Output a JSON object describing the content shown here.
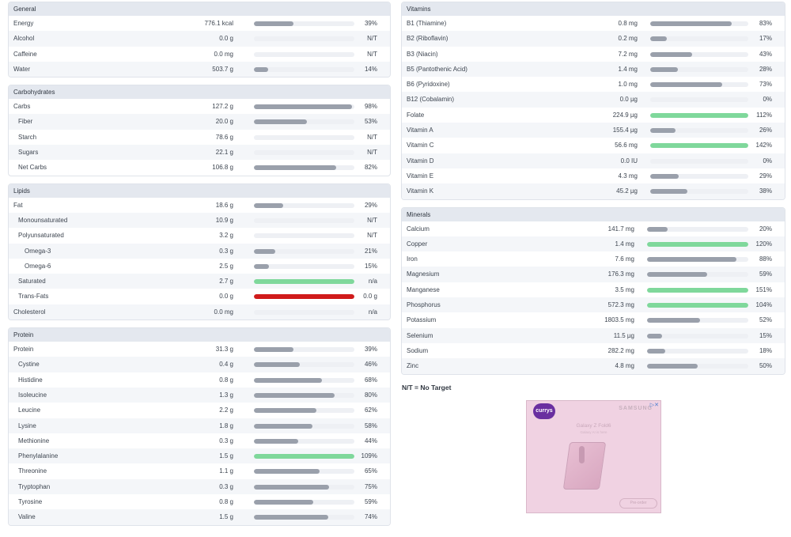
{
  "colors": {
    "grey_fill": "#9aa0ab",
    "green_fill": "#7fd89b",
    "red_fill": "#d01b1b",
    "track": "#eef0f4",
    "header_bg": "#e4e8ef"
  },
  "sections_left": [
    {
      "key": "general",
      "title": "General",
      "rows": [
        {
          "name": "Energy",
          "indent": 0,
          "amount": "776.1 kcal",
          "pct": "39%",
          "level": 0.39,
          "color": "grey"
        },
        {
          "name": "Alcohol",
          "indent": 0,
          "amount": "0.0 g",
          "pct": "N/T",
          "level": 0,
          "color": "grey"
        },
        {
          "name": "Caffeine",
          "indent": 0,
          "amount": "0.0 mg",
          "pct": "N/T",
          "level": 0,
          "color": "grey"
        },
        {
          "name": "Water",
          "indent": 0,
          "amount": "503.7 g",
          "pct": "14%",
          "level": 0.14,
          "color": "grey"
        }
      ]
    },
    {
      "key": "carbohydrates",
      "title": "Carbohydrates",
      "rows": [
        {
          "name": "Carbs",
          "indent": 0,
          "amount": "127.2 g",
          "pct": "98%",
          "level": 0.98,
          "color": "grey"
        },
        {
          "name": "Fiber",
          "indent": 1,
          "amount": "20.0 g",
          "pct": "53%",
          "level": 0.53,
          "color": "grey"
        },
        {
          "name": "Starch",
          "indent": 1,
          "amount": "78.6 g",
          "pct": "N/T",
          "level": 0,
          "color": "grey"
        },
        {
          "name": "Sugars",
          "indent": 1,
          "amount": "22.1 g",
          "pct": "N/T",
          "level": 0,
          "color": "grey"
        },
        {
          "name": "Net Carbs",
          "indent": 1,
          "amount": "106.8 g",
          "pct": "82%",
          "level": 0.82,
          "color": "grey"
        }
      ]
    },
    {
      "key": "lipids",
      "title": "Lipids",
      "rows": [
        {
          "name": "Fat",
          "indent": 0,
          "amount": "18.6 g",
          "pct": "29%",
          "level": 0.29,
          "color": "grey"
        },
        {
          "name": "Monounsaturated",
          "indent": 1,
          "amount": "10.9 g",
          "pct": "N/T",
          "level": 0,
          "color": "grey"
        },
        {
          "name": "Polyunsaturated",
          "indent": 1,
          "amount": "3.2 g",
          "pct": "N/T",
          "level": 0,
          "color": "grey"
        },
        {
          "name": "Omega-3",
          "indent": 2,
          "amount": "0.3 g",
          "pct": "21%",
          "level": 0.21,
          "color": "grey"
        },
        {
          "name": "Omega-6",
          "indent": 2,
          "amount": "2.5 g",
          "pct": "15%",
          "level": 0.15,
          "color": "grey"
        },
        {
          "name": "Saturated",
          "indent": 1,
          "amount": "2.7 g",
          "pct": "n/a",
          "level": 1,
          "color": "green"
        },
        {
          "name": "Trans-Fats",
          "indent": 1,
          "amount": "0.0 g",
          "pct": "0.0 g",
          "level": 1,
          "color": "red"
        },
        {
          "name": "Cholesterol",
          "indent": 0,
          "amount": "0.0 mg",
          "pct": "n/a",
          "level": 0,
          "color": "grey"
        }
      ]
    },
    {
      "key": "protein",
      "title": "Protein",
      "rows": [
        {
          "name": "Protein",
          "indent": 0,
          "amount": "31.3 g",
          "pct": "39%",
          "level": 0.39,
          "color": "grey"
        },
        {
          "name": "Cystine",
          "indent": 1,
          "amount": "0.4 g",
          "pct": "46%",
          "level": 0.46,
          "color": "grey"
        },
        {
          "name": "Histidine",
          "indent": 1,
          "amount": "0.8 g",
          "pct": "68%",
          "level": 0.68,
          "color": "grey"
        },
        {
          "name": "Isoleucine",
          "indent": 1,
          "amount": "1.3 g",
          "pct": "80%",
          "level": 0.8,
          "color": "grey"
        },
        {
          "name": "Leucine",
          "indent": 1,
          "amount": "2.2 g",
          "pct": "62%",
          "level": 0.62,
          "color": "grey"
        },
        {
          "name": "Lysine",
          "indent": 1,
          "amount": "1.8 g",
          "pct": "58%",
          "level": 0.58,
          "color": "grey"
        },
        {
          "name": "Methionine",
          "indent": 1,
          "amount": "0.3 g",
          "pct": "44%",
          "level": 0.44,
          "color": "grey"
        },
        {
          "name": "Phenylalanine",
          "indent": 1,
          "amount": "1.5 g",
          "pct": "109%",
          "level": 1,
          "color": "green"
        },
        {
          "name": "Threonine",
          "indent": 1,
          "amount": "1.1 g",
          "pct": "65%",
          "level": 0.65,
          "color": "grey"
        },
        {
          "name": "Tryptophan",
          "indent": 1,
          "amount": "0.3 g",
          "pct": "75%",
          "level": 0.75,
          "color": "grey"
        },
        {
          "name": "Tyrosine",
          "indent": 1,
          "amount": "0.8 g",
          "pct": "59%",
          "level": 0.59,
          "color": "grey"
        },
        {
          "name": "Valine",
          "indent": 1,
          "amount": "1.5 g",
          "pct": "74%",
          "level": 0.74,
          "color": "grey"
        }
      ]
    }
  ],
  "vitamins": {
    "title": "Vitamins",
    "rows": [
      {
        "name": "B1 (Thiamine)",
        "indent": 0,
        "amount": "0.8 mg",
        "pct": "83%",
        "level": 0.83,
        "color": "grey"
      },
      {
        "name": "B2 (Riboflavin)",
        "indent": 0,
        "amount": "0.2 mg",
        "pct": "17%",
        "level": 0.17,
        "color": "grey"
      },
      {
        "name": "B3 (Niacin)",
        "indent": 0,
        "amount": "7.2 mg",
        "pct": "43%",
        "level": 0.43,
        "color": "grey"
      },
      {
        "name": "B5 (Pantothenic Acid)",
        "indent": 0,
        "amount": "1.4 mg",
        "pct": "28%",
        "level": 0.28,
        "color": "grey"
      },
      {
        "name": "B6 (Pyridoxine)",
        "indent": 0,
        "amount": "1.0 mg",
        "pct": "73%",
        "level": 0.73,
        "color": "grey"
      },
      {
        "name": "B12 (Cobalamin)",
        "indent": 0,
        "amount": "0.0 µg",
        "pct": "0%",
        "level": 0,
        "color": "grey"
      },
      {
        "name": "Folate",
        "indent": 0,
        "amount": "224.9 µg",
        "pct": "112%",
        "level": 1,
        "color": "green"
      },
      {
        "name": "Vitamin A",
        "indent": 0,
        "amount": "155.4 µg",
        "pct": "26%",
        "level": 0.26,
        "color": "grey"
      },
      {
        "name": "Vitamin C",
        "indent": 0,
        "amount": "56.6 mg",
        "pct": "142%",
        "level": 1,
        "color": "green"
      },
      {
        "name": "Vitamin D",
        "indent": 0,
        "amount": "0.0 IU",
        "pct": "0%",
        "level": 0,
        "color": "grey"
      },
      {
        "name": "Vitamin E",
        "indent": 0,
        "amount": "4.3 mg",
        "pct": "29%",
        "level": 0.29,
        "color": "grey"
      },
      {
        "name": "Vitamin K",
        "indent": 0,
        "amount": "45.2 µg",
        "pct": "38%",
        "level": 0.38,
        "color": "grey"
      }
    ]
  },
  "minerals": {
    "title": "Minerals",
    "rows": [
      {
        "name": "Calcium",
        "indent": 0,
        "amount": "141.7 mg",
        "pct": "20%",
        "level": 0.2,
        "color": "grey"
      },
      {
        "name": "Copper",
        "indent": 0,
        "amount": "1.4 mg",
        "pct": "120%",
        "level": 1,
        "color": "green"
      },
      {
        "name": "Iron",
        "indent": 0,
        "amount": "7.6 mg",
        "pct": "88%",
        "level": 0.88,
        "color": "grey"
      },
      {
        "name": "Magnesium",
        "indent": 0,
        "amount": "176.3 mg",
        "pct": "59%",
        "level": 0.59,
        "color": "grey"
      },
      {
        "name": "Manganese",
        "indent": 0,
        "amount": "3.5 mg",
        "pct": "151%",
        "level": 1,
        "color": "green"
      },
      {
        "name": "Phosphorus",
        "indent": 0,
        "amount": "572.3 mg",
        "pct": "104%",
        "level": 1,
        "color": "green"
      },
      {
        "name": "Potassium",
        "indent": 0,
        "amount": "1803.5 mg",
        "pct": "52%",
        "level": 0.52,
        "color": "grey"
      },
      {
        "name": "Selenium",
        "indent": 0,
        "amount": "11.5 µg",
        "pct": "15%",
        "level": 0.15,
        "color": "grey"
      },
      {
        "name": "Sodium",
        "indent": 0,
        "amount": "282.2 mg",
        "pct": "18%",
        "level": 0.18,
        "color": "grey"
      },
      {
        "name": "Zinc",
        "indent": 0,
        "amount": "4.8 mg",
        "pct": "50%",
        "level": 0.5,
        "color": "grey"
      }
    ]
  },
  "note": "N/T = No Target",
  "ad": {
    "logo": "currys",
    "brand": "SAMSUNG",
    "choice_icon": "adchoices-icon",
    "title": "Galaxy Z Fold6",
    "subtitle": "Galaxy AI is here",
    "cta": "Pre-order"
  }
}
